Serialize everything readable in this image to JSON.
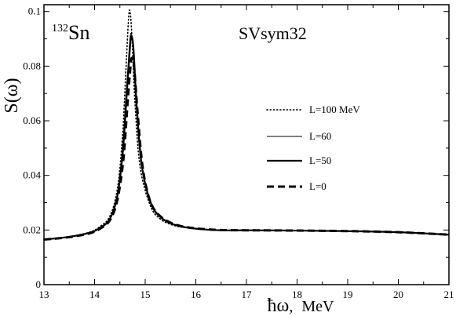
{
  "chart_data": {
    "type": "line",
    "nucleus_mass": "132",
    "nucleus_symbol": "Sn",
    "model": "SVsym32",
    "xlabel_symbol": "ħω",
    "xlabel_unit": "MeV",
    "ylabel": "S(ω)",
    "xlim": [
      13,
      21
    ],
    "ylim": [
      0,
      0.1025
    ],
    "xticks": [
      "13",
      "14",
      "15",
      "16",
      "17",
      "18",
      "19",
      "20",
      "21"
    ],
    "yticks": [
      "0",
      "0.02",
      "0.04",
      "0.06",
      "0.08",
      "0.1"
    ],
    "legend_position": "right-middle",
    "grid": false,
    "series": [
      {
        "name": "L=100 MeV",
        "style": "dotted",
        "x": [
          13,
          13.5,
          13.9,
          14.1,
          14.3,
          14.45,
          14.55,
          14.62,
          14.67,
          14.7,
          14.74,
          14.8,
          14.9,
          15.1,
          15.3,
          15.6,
          16,
          16.5,
          17,
          18,
          19,
          20,
          21
        ],
        "y": [
          0.0165,
          0.0176,
          0.0192,
          0.0212,
          0.025,
          0.035,
          0.054,
          0.079,
          0.097,
          0.1,
          0.09,
          0.066,
          0.043,
          0.029,
          0.024,
          0.0215,
          0.0205,
          0.0199,
          0.0199,
          0.0198,
          0.0196,
          0.0192,
          0.0183
        ]
      },
      {
        "name": "L=60",
        "style": "thin-solid",
        "x": [
          13,
          13.5,
          13.9,
          14.1,
          14.3,
          14.45,
          14.55,
          14.63,
          14.69,
          14.72,
          14.76,
          14.82,
          14.92,
          15.1,
          15.3,
          15.6,
          16,
          16.5,
          17,
          18,
          19,
          20,
          21
        ],
        "y": [
          0.0165,
          0.0175,
          0.019,
          0.0208,
          0.0242,
          0.033,
          0.05,
          0.072,
          0.088,
          0.092,
          0.087,
          0.066,
          0.044,
          0.03,
          0.0245,
          0.0217,
          0.0205,
          0.0199,
          0.0199,
          0.0198,
          0.0196,
          0.0192,
          0.0183
        ]
      },
      {
        "name": "L=50",
        "style": "thick-solid",
        "x": [
          13,
          13.5,
          13.9,
          14.1,
          14.3,
          14.45,
          14.56,
          14.64,
          14.7,
          14.73,
          14.77,
          14.83,
          14.93,
          15.1,
          15.3,
          15.6,
          16,
          16.5,
          17,
          18,
          19,
          20,
          21
        ],
        "y": [
          0.0165,
          0.0175,
          0.019,
          0.0207,
          0.024,
          0.0325,
          0.049,
          0.071,
          0.087,
          0.091,
          0.086,
          0.066,
          0.044,
          0.0305,
          0.0248,
          0.0218,
          0.0205,
          0.0199,
          0.0199,
          0.0198,
          0.0196,
          0.0192,
          0.0183
        ]
      },
      {
        "name": "L=0",
        "style": "dashed",
        "x": [
          13,
          13.5,
          13.9,
          14.1,
          14.3,
          14.45,
          14.57,
          14.65,
          14.71,
          14.74,
          14.78,
          14.85,
          14.95,
          15.1,
          15.3,
          15.6,
          16,
          16.5,
          17,
          18,
          19,
          20,
          21
        ],
        "y": [
          0.0165,
          0.0174,
          0.0188,
          0.0204,
          0.0235,
          0.031,
          0.046,
          0.066,
          0.08,
          0.083,
          0.08,
          0.063,
          0.043,
          0.0305,
          0.025,
          0.022,
          0.0206,
          0.02,
          0.0199,
          0.0198,
          0.0196,
          0.0192,
          0.0183
        ]
      }
    ]
  }
}
